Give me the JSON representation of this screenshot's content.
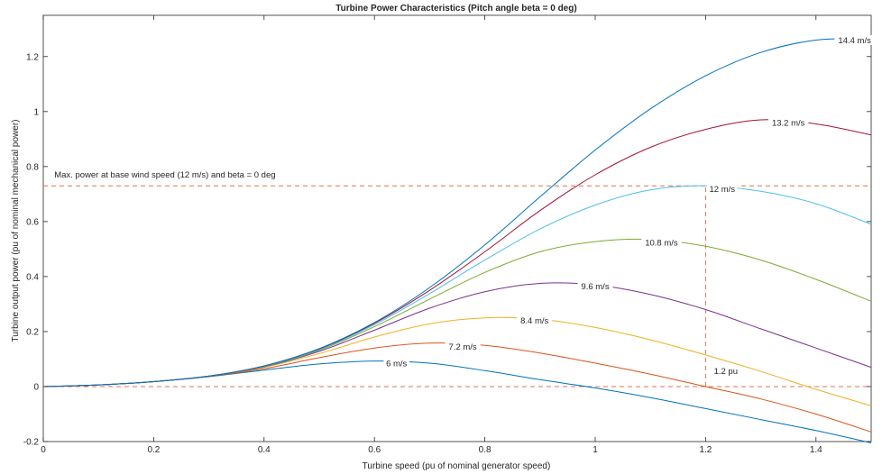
{
  "chart_data": {
    "type": "line",
    "title": "Turbine Power Characteristics (Pitch angle beta = 0 deg)",
    "xlabel": "Turbine speed (pu of nominal generator speed)",
    "ylabel": "Turbine output power (pu of nominal mechanical power)",
    "xlim": [
      0,
      1.5
    ],
    "ylim": [
      -0.2,
      1.35
    ],
    "xticks": [
      0,
      0.2,
      0.4,
      0.6,
      0.8,
      1,
      1.2,
      1.4
    ],
    "yticks": [
      -0.2,
      0,
      0.2,
      0.4,
      0.6,
      0.8,
      1,
      1.2
    ],
    "xtick_labels": [
      "0",
      "0.2",
      "0.4",
      "0.6",
      "0.8",
      "1",
      "1.2",
      "1.4"
    ],
    "ytick_labels": [
      "-0.2",
      "0",
      "0.2",
      "0.4",
      "0.6",
      "0.8",
      "1",
      "1.2"
    ],
    "grid": false,
    "series": [
      {
        "name": "6 m/s",
        "color": "#0072bd",
        "x": [
          0,
          0.1,
          0.2,
          0.3,
          0.4,
          0.5,
          0.6,
          0.7,
          0.8,
          0.9,
          1.0,
          1.1,
          1.2,
          1.3,
          1.4,
          1.5
        ],
        "y": [
          0,
          0.006,
          0.018,
          0.036,
          0.06,
          0.082,
          0.093,
          0.085,
          0.058,
          0.025,
          -0.005,
          -0.04,
          -0.08,
          -0.12,
          -0.16,
          -0.205
        ]
      },
      {
        "name": "7.2 m/s",
        "color": "#d95319",
        "x": [
          0,
          0.1,
          0.2,
          0.3,
          0.4,
          0.5,
          0.6,
          0.7,
          0.8,
          0.9,
          1.0,
          1.1,
          1.2,
          1.3,
          1.4,
          1.5
        ],
        "y": [
          0,
          0.006,
          0.018,
          0.037,
          0.065,
          0.105,
          0.14,
          0.158,
          0.15,
          0.122,
          0.085,
          0.045,
          0.0,
          -0.045,
          -0.1,
          -0.165
        ]
      },
      {
        "name": "8.4 m/s",
        "color": "#edb120",
        "x": [
          0,
          0.1,
          0.2,
          0.3,
          0.4,
          0.5,
          0.6,
          0.7,
          0.8,
          0.9,
          1.0,
          1.1,
          1.2,
          1.3,
          1.4,
          1.5
        ],
        "y": [
          0,
          0.006,
          0.018,
          0.038,
          0.07,
          0.12,
          0.18,
          0.228,
          0.25,
          0.245,
          0.215,
          0.17,
          0.115,
          0.055,
          -0.01,
          -0.07
        ]
      },
      {
        "name": "9.6 m/s",
        "color": "#7e2f8e",
        "x": [
          0,
          0.1,
          0.2,
          0.3,
          0.4,
          0.5,
          0.6,
          0.7,
          0.8,
          0.9,
          1.0,
          1.1,
          1.2,
          1.3,
          1.4,
          1.5
        ],
        "y": [
          0,
          0.006,
          0.018,
          0.038,
          0.072,
          0.128,
          0.205,
          0.285,
          0.345,
          0.375,
          0.37,
          0.335,
          0.28,
          0.21,
          0.14,
          0.07
        ]
      },
      {
        "name": "10.8 m/s",
        "color": "#77ac30",
        "x": [
          0,
          0.1,
          0.2,
          0.3,
          0.4,
          0.5,
          0.6,
          0.7,
          0.8,
          0.9,
          1.0,
          1.1,
          1.2,
          1.3,
          1.4,
          1.5
        ],
        "y": [
          0,
          0.006,
          0.018,
          0.038,
          0.073,
          0.132,
          0.218,
          0.318,
          0.415,
          0.49,
          0.527,
          0.535,
          0.51,
          0.46,
          0.39,
          0.31
        ]
      },
      {
        "name": "12 m/s",
        "color": "#4dbeee",
        "x": [
          0,
          0.1,
          0.2,
          0.3,
          0.4,
          0.5,
          0.6,
          0.7,
          0.8,
          0.9,
          1.0,
          1.1,
          1.2,
          1.3,
          1.4,
          1.5
        ],
        "y": [
          0,
          0.006,
          0.018,
          0.038,
          0.074,
          0.135,
          0.225,
          0.338,
          0.46,
          0.573,
          0.66,
          0.715,
          0.73,
          0.71,
          0.665,
          0.59
        ]
      },
      {
        "name": "13.2 m/s",
        "color": "#a2142f",
        "x": [
          0,
          0.1,
          0.2,
          0.3,
          0.4,
          0.5,
          0.6,
          0.7,
          0.8,
          0.9,
          1.0,
          1.1,
          1.2,
          1.3,
          1.4,
          1.5
        ],
        "y": [
          0,
          0.006,
          0.018,
          0.038,
          0.075,
          0.137,
          0.23,
          0.35,
          0.49,
          0.64,
          0.77,
          0.87,
          0.935,
          0.97,
          0.955,
          0.915
        ]
      },
      {
        "name": "14.4 m/s",
        "color": "#0072bd",
        "x": [
          0,
          0.1,
          0.2,
          0.3,
          0.4,
          0.5,
          0.6,
          0.7,
          0.8,
          0.9,
          1.0,
          1.1,
          1.2,
          1.3,
          1.4,
          1.5
        ],
        "y": [
          0,
          0.006,
          0.018,
          0.038,
          0.075,
          0.138,
          0.233,
          0.36,
          0.515,
          0.69,
          0.86,
          1.01,
          1.13,
          1.215,
          1.26,
          1.265
        ]
      }
    ],
    "series_labels": [
      {
        "text": "6 m/s",
        "x": 0.64,
        "y": 0.085
      },
      {
        "text": "7.2 m/s",
        "x": 0.76,
        "y": 0.145
      },
      {
        "text": "8.4 m/s",
        "x": 0.89,
        "y": 0.24
      },
      {
        "text": "9.6 m/s",
        "x": 1.0,
        "y": 0.365
      },
      {
        "text": "10.8 m/s",
        "x": 1.12,
        "y": 0.525
      },
      {
        "text": "12 m/s",
        "x": 1.23,
        "y": 0.72
      },
      {
        "text": "13.2 m/s",
        "x": 1.35,
        "y": 0.96
      },
      {
        "text": "14.4 m/s",
        "x": 1.47,
        "y": 1.26
      }
    ],
    "reference_lines": [
      {
        "kind": "horizontal",
        "y": 0.73,
        "x_from": 0,
        "x_to": 1.5,
        "color": "#e07050",
        "style": "dashed"
      },
      {
        "kind": "horizontal",
        "y": 0,
        "x_from": 0,
        "x_to": 1.5,
        "color": "#e07050",
        "style": "dashed"
      },
      {
        "kind": "vertical",
        "x": 1.2,
        "y_from": 0,
        "y_to": 0.73,
        "color": "#e07050",
        "style": "dashed"
      }
    ],
    "annotations": [
      {
        "text": "Max. power at base wind speed (12 m/s) and beta = 0 deg",
        "x": 0.02,
        "y": 0.76
      },
      {
        "text": "1.2 pu",
        "x": 1.215,
        "y": 0.045
      }
    ]
  }
}
